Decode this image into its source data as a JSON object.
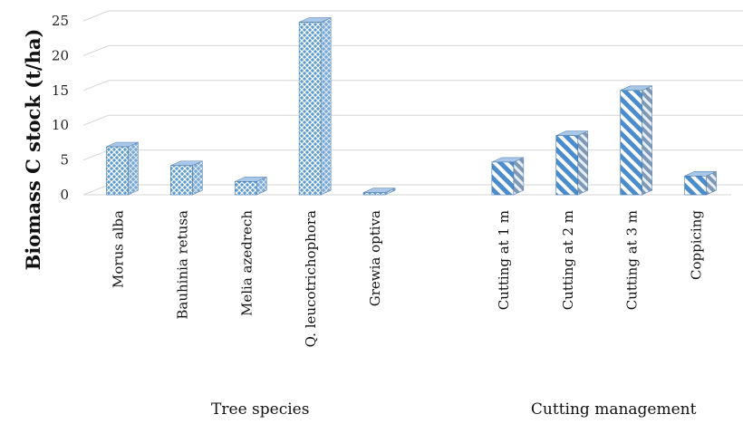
{
  "chart_data": {
    "type": "bar",
    "style": "3d-column",
    "ylabel": "Biomass C stock (t/ha)",
    "ylim": [
      0,
      25
    ],
    "yticks": [
      0,
      5,
      10,
      15,
      20,
      25
    ],
    "grid": true,
    "groups": [
      {
        "name": "Tree species",
        "categories": [
          "Morus alba",
          "Bauhinia retusa",
          "Melia azedrech",
          "Q. leucotrichophora",
          "Grewia optiva"
        ],
        "values": [
          6.9,
          4.2,
          1.9,
          24.8,
          0.3
        ],
        "pattern": "crosshatch"
      },
      {
        "name": "Cutting management",
        "categories": [
          "Cutting at 1 m",
          "Cutting at 2 m",
          "Cutting at 3 m",
          "Coppicing"
        ],
        "values": [
          4.7,
          8.5,
          15.0,
          2.7
        ],
        "pattern": "diagonal-stripes"
      }
    ],
    "colors": {
      "bar_fill": "#5b9bd5",
      "bar_light": "#ffffff",
      "bar_dark": "#3f79b5",
      "bar_side": "#8db4e0",
      "bar_top": "#a9c7e8",
      "grid": "#d6d6d6"
    }
  }
}
